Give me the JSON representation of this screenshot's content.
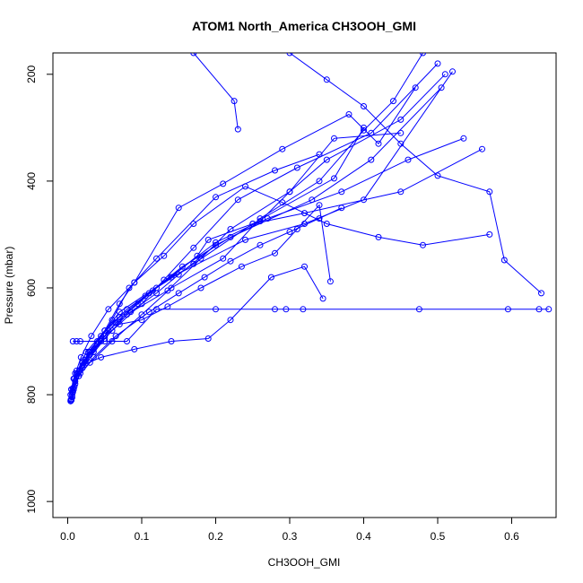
{
  "chart_data": {
    "type": "scatter",
    "title": "ATOM1 North_America CH3OOH_GMI",
    "xlabel": "CH3OOH_GMI",
    "ylabel": "Pressure (mbar)",
    "xlim": [
      -0.02,
      0.66
    ],
    "ylim": [
      1030,
      160
    ],
    "y_reversed": true,
    "x_ticks": [
      "0.0",
      "0.1",
      "0.2",
      "0.3",
      "0.4",
      "0.5",
      "0.6"
    ],
    "x_tick_values": [
      0,
      0.1,
      0.2,
      0.3,
      0.4,
      0.5,
      0.6
    ],
    "y_ticks": [
      "200",
      "400",
      "600",
      "800",
      "1000"
    ],
    "y_tick_values": [
      200,
      400,
      600,
      800,
      1000
    ],
    "grid": false,
    "legend": "none",
    "marker": "open-circle",
    "line_color": "#0000ff",
    "series": [
      {
        "x": [
          0.005,
          0.008,
          0.015,
          0.03,
          0.06,
          0.1,
          0.14,
          0.21,
          0.26,
          0.34,
          0.4,
          0.44,
          0.48
        ],
        "y": [
          810,
          790,
          765,
          740,
          700,
          650,
          600,
          545,
          470,
          400,
          305,
          250,
          160
        ]
      },
      {
        "x": [
          0.004,
          0.007,
          0.014,
          0.025,
          0.05,
          0.08,
          0.12,
          0.17,
          0.25,
          0.36,
          0.4
        ],
        "y": [
          812,
          795,
          760,
          720,
          680,
          640,
          600,
          555,
          480,
          395,
          300
        ]
      },
      {
        "x": [
          0.005,
          0.009,
          0.02,
          0.035,
          0.065,
          0.11,
          0.2,
          0.26,
          0.3,
          0.35,
          0.45,
          0.51
        ],
        "y": [
          810,
          785,
          750,
          715,
          665,
          610,
          515,
          475,
          420,
          360,
          285,
          200
        ]
      },
      {
        "x": [
          0.006,
          0.01,
          0.02,
          0.04,
          0.07,
          0.14,
          0.24,
          0.32,
          0.4,
          0.52
        ],
        "y": [
          805,
          775,
          745,
          700,
          645,
          580,
          510,
          480,
          435,
          195
        ]
      },
      {
        "x": [
          0.004,
          0.008,
          0.018,
          0.032,
          0.055,
          0.09,
          0.15,
          0.21,
          0.29,
          0.38,
          0.42,
          0.47
        ],
        "y": [
          800,
          770,
          730,
          690,
          640,
          590,
          450,
          405,
          340,
          275,
          330,
          225
        ]
      },
      {
        "x": [
          0.005,
          0.01,
          0.025,
          0.05,
          0.08,
          0.135,
          0.18,
          0.22,
          0.3,
          0.36,
          0.45
        ],
        "y": [
          808,
          780,
          740,
          695,
          650,
          605,
          545,
          490,
          420,
          320,
          310
        ]
      },
      {
        "x": [
          0.006,
          0.012,
          0.03,
          0.06,
          0.1,
          0.13,
          0.17,
          0.23,
          0.31,
          0.41,
          0.5
        ],
        "y": [
          795,
          760,
          725,
          680,
          630,
          585,
          525,
          435,
          375,
          310,
          180
        ]
      },
      {
        "x": [
          0.004,
          0.007,
          0.016,
          0.028,
          0.045,
          0.07,
          0.105,
          0.155,
          0.22,
          0.33,
          0.41,
          0.505
        ],
        "y": [
          810,
          788,
          755,
          720,
          690,
          655,
          615,
          560,
          505,
          435,
          360,
          225
        ]
      },
      {
        "x": [
          0.005,
          0.01,
          0.022,
          0.045,
          0.065,
          0.095,
          0.115,
          0.14,
          0.175,
          0.19,
          0.25,
          0.32,
          0.45,
          0.56
        ],
        "y": [
          790,
          760,
          735,
          700,
          665,
          630,
          605,
          580,
          540,
          510,
          480,
          460,
          420,
          340
        ]
      },
      {
        "x": [
          0.004,
          0.009,
          0.02,
          0.04,
          0.06,
          0.083,
          0.12,
          0.2,
          0.28,
          0.34
        ],
        "y": [
          800,
          770,
          740,
          705,
          660,
          600,
          545,
          430,
          380,
          350
        ]
      },
      {
        "x": [
          0.005,
          0.012,
          0.03,
          0.05,
          0.07,
          0.09,
          0.13,
          0.17,
          0.24,
          0.29,
          0.35,
          0.42,
          0.48,
          0.57
        ],
        "y": [
          790,
          755,
          720,
          680,
          630,
          590,
          540,
          480,
          410,
          440,
          480,
          505,
          520,
          500
        ]
      },
      {
        "x": [
          0.004,
          0.008,
          0.017,
          0.035,
          0.055,
          0.085,
          0.12,
          0.15,
          0.2,
          0.27,
          0.37,
          0.46,
          0.535
        ],
        "y": [
          812,
          790,
          760,
          720,
          680,
          645,
          610,
          575,
          520,
          470,
          420,
          360,
          320
        ]
      },
      {
        "x": [
          0.006,
          0.015,
          0.035,
          0.065,
          0.11,
          0.15,
          0.185,
          0.22,
          0.26,
          0.3,
          0.34,
          0.37
        ],
        "y": [
          800,
          765,
          730,
          690,
          645,
          610,
          580,
          550,
          520,
          495,
          470,
          450
        ]
      },
      {
        "x": [
          0.007,
          0.012,
          0.017,
          0.05,
          0.08,
          0.12,
          0.2,
          0.28,
          0.295,
          0.318,
          0.475,
          0.595,
          0.637,
          0.65
        ],
        "y": [
          700,
          700,
          700,
          700,
          700,
          640,
          640,
          640,
          640,
          640,
          640,
          640,
          640,
          640
        ]
      },
      {
        "x": [
          0.17,
          0.225,
          0.23
        ],
        "y": [
          160,
          250,
          303
        ]
      },
      {
        "x": [
          0.3,
          0.35,
          0.4,
          0.45,
          0.5,
          0.57,
          0.59,
          0.64
        ],
        "y": [
          160,
          210,
          260,
          330,
          390,
          420,
          548,
          610
        ]
      },
      {
        "x": [
          0.05,
          0.07,
          0.1,
          0.135,
          0.18,
          0.235,
          0.28,
          0.31,
          0.34,
          0.355
        ],
        "y": [
          690,
          668,
          660,
          635,
          600,
          560,
          535,
          490,
          445,
          588
        ]
      },
      {
        "x": [
          0.02,
          0.045,
          0.09,
          0.14,
          0.19,
          0.22,
          0.275,
          0.32,
          0.345
        ],
        "y": [
          745,
          730,
          715,
          700,
          695,
          660,
          580,
          560,
          620
        ]
      }
    ]
  }
}
